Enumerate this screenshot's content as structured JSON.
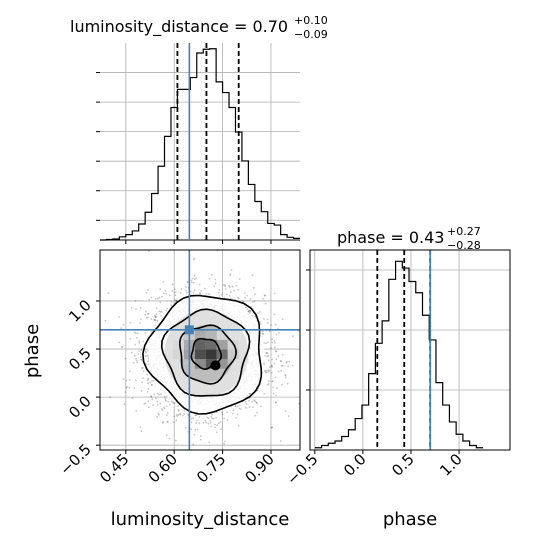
{
  "chart_data": {
    "type": "corner",
    "parameters": [
      "luminosity_distance",
      "phase"
    ],
    "truths": {
      "luminosity_distance": 0.647,
      "phase": 0.7
    },
    "colors": {
      "truth": "#4682b4",
      "hist": "#000000",
      "grid": "#b0b0b0",
      "quantile": "#000000"
    },
    "grid": true,
    "panels": {
      "ld_hist": {
        "title_main": "luminosity_distance = 0.70",
        "title_plus": "+0.10",
        "title_minus": "−0.09",
        "xlim": [
          0.37,
          0.99
        ],
        "quantiles": [
          0.61,
          0.7,
          0.8
        ],
        "bin_edges": [
          0.37,
          0.39,
          0.41,
          0.43,
          0.45,
          0.47,
          0.49,
          0.51,
          0.53,
          0.55,
          0.57,
          0.59,
          0.61,
          0.63,
          0.65,
          0.67,
          0.69,
          0.71,
          0.73,
          0.75,
          0.77,
          0.79,
          0.81,
          0.83,
          0.85,
          0.87,
          0.89,
          0.91,
          0.93,
          0.95,
          0.97,
          0.99
        ],
        "counts": [
          0,
          1,
          2,
          6,
          10,
          17,
          30,
          52,
          87,
          138,
          194,
          248,
          282,
          282,
          304,
          350,
          357,
          358,
          296,
          276,
          248,
          202,
          148,
          104,
          72,
          53,
          31,
          28,
          10,
          5,
          3
        ]
      },
      "scatter": {
        "xlim": [
          0.37,
          0.99
        ],
        "ylim": [
          -0.55,
          1.53
        ],
        "xticks": [
          0.45,
          0.6,
          0.75,
          0.9
        ],
        "xtick_labels": [
          "0.45",
          "0.60",
          "0.75",
          "0.90"
        ],
        "yticks": [
          -0.5,
          0.0,
          0.5,
          1.0
        ],
        "ytick_labels": [
          "−0.5",
          "0.0",
          "0.5",
          "1.0"
        ],
        "xlabel": "luminosity_distance",
        "ylabel": "phase",
        "center": [
          0.7,
          0.45
        ],
        "spread": [
          0.09,
          0.3
        ],
        "n_points": 3500,
        "contours": [
          {
            "rx": 0.045,
            "ry": 0.155,
            "cx": 0.698,
            "cy": 0.455
          },
          {
            "rx": 0.085,
            "ry": 0.3,
            "cx": 0.7,
            "cy": 0.45
          },
          {
            "rx": 0.13,
            "ry": 0.45,
            "cx": 0.7,
            "cy": 0.455
          },
          {
            "rx": 0.18,
            "ry": 0.61,
            "cx": 0.7,
            "cy": 0.455
          }
        ],
        "density_cells": [
          {
            "x": 0.63,
            "y": 0.295,
            "w": 0.034,
            "h": 0.1,
            "v": 0.3
          },
          {
            "x": 0.664,
            "y": 0.295,
            "w": 0.034,
            "h": 0.1,
            "v": 0.55
          },
          {
            "x": 0.698,
            "y": 0.295,
            "w": 0.034,
            "h": 0.1,
            "v": 0.8
          },
          {
            "x": 0.732,
            "y": 0.295,
            "w": 0.034,
            "h": 0.1,
            "v": 0.5
          },
          {
            "x": 0.63,
            "y": 0.395,
            "w": 0.034,
            "h": 0.1,
            "v": 0.45
          },
          {
            "x": 0.664,
            "y": 0.395,
            "w": 0.034,
            "h": 0.1,
            "v": 0.85
          },
          {
            "x": 0.698,
            "y": 0.395,
            "w": 0.034,
            "h": 0.1,
            "v": 0.95
          },
          {
            "x": 0.732,
            "y": 0.395,
            "w": 0.034,
            "h": 0.1,
            "v": 0.7
          },
          {
            "x": 0.63,
            "y": 0.495,
            "w": 0.034,
            "h": 0.1,
            "v": 0.4
          },
          {
            "x": 0.664,
            "y": 0.495,
            "w": 0.034,
            "h": 0.1,
            "v": 0.75
          },
          {
            "x": 0.698,
            "y": 0.495,
            "w": 0.034,
            "h": 0.1,
            "v": 0.7
          },
          {
            "x": 0.732,
            "y": 0.495,
            "w": 0.034,
            "h": 0.1,
            "v": 0.45
          },
          {
            "x": 0.63,
            "y": 0.595,
            "w": 0.034,
            "h": 0.1,
            "v": 0.25
          },
          {
            "x": 0.664,
            "y": 0.595,
            "w": 0.034,
            "h": 0.1,
            "v": 0.4
          },
          {
            "x": 0.698,
            "y": 0.595,
            "w": 0.034,
            "h": 0.1,
            "v": 0.35
          },
          {
            "x": 0.732,
            "y": 0.595,
            "w": 0.034,
            "h": 0.1,
            "v": 0.2
          },
          {
            "x": 0.596,
            "y": 0.395,
            "w": 0.034,
            "h": 0.1,
            "v": 0.2
          },
          {
            "x": 0.766,
            "y": 0.395,
            "w": 0.034,
            "h": 0.1,
            "v": 0.25
          },
          {
            "x": 0.596,
            "y": 0.495,
            "w": 0.034,
            "h": 0.1,
            "v": 0.18
          },
          {
            "x": 0.766,
            "y": 0.495,
            "w": 0.034,
            "h": 0.1,
            "v": 0.2
          }
        ],
        "peak_marker": [
          0.728,
          0.33
        ],
        "truth_marker": [
          0.647,
          0.7
        ]
      },
      "phase_hist": {
        "title_main": "phase = 0.43",
        "title_plus": "+0.27",
        "title_minus": "−0.28",
        "xlim": [
          -0.55,
          1.53
        ],
        "xticks": [
          -0.5,
          0.0,
          0.5,
          1.0
        ],
        "xtick_labels": [
          "−0.5",
          "0.0",
          "0.5",
          "1.0"
        ],
        "xlabel": "phase",
        "quantiles": [
          0.15,
          0.43,
          0.7
        ],
        "bin_edges": [
          -0.5,
          -0.43,
          -0.36,
          -0.29,
          -0.22,
          -0.15,
          -0.08,
          -0.01,
          0.06,
          0.13,
          0.2,
          0.27,
          0.34,
          0.41,
          0.48,
          0.55,
          0.62,
          0.69,
          0.76,
          0.83,
          0.9,
          0.97,
          1.04,
          1.11,
          1.18,
          1.25
        ],
        "counts": [
          2,
          4,
          6,
          8,
          12,
          18,
          28,
          40,
          68,
          95,
          115,
          152,
          168,
          162,
          150,
          140,
          120,
          98,
          60,
          40,
          25,
          14,
          8,
          4,
          2
        ]
      }
    }
  }
}
